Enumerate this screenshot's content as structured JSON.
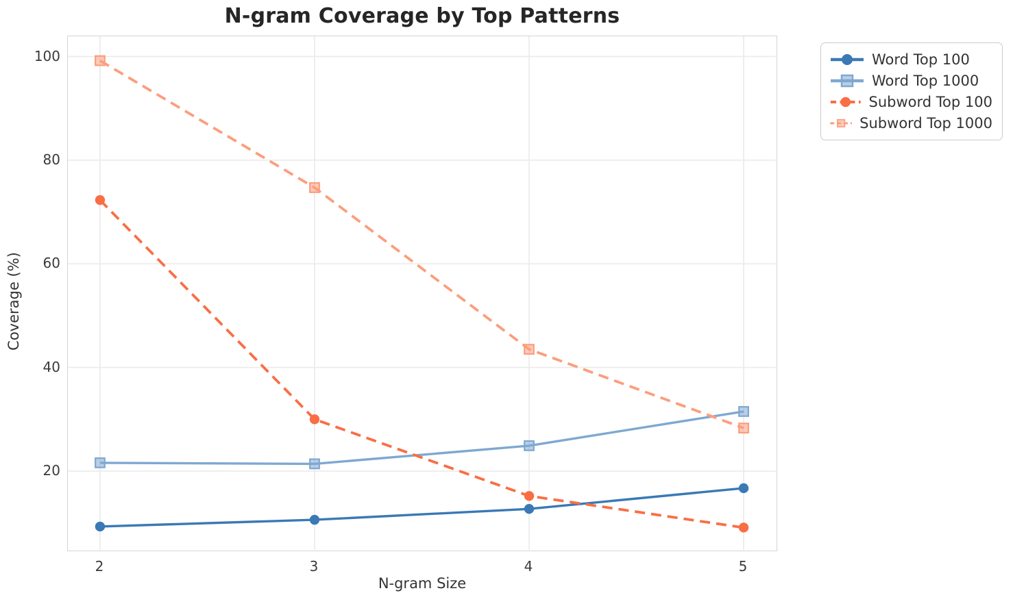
{
  "chart_data": {
    "type": "line",
    "title": "N-gram Coverage by Top Patterns",
    "xlabel": "N-gram Size",
    "ylabel": "Coverage (%)",
    "x": [
      2,
      3,
      4,
      5
    ],
    "xticks": [
      2,
      3,
      4,
      5
    ],
    "yticks": [
      20,
      40,
      60,
      80,
      100
    ],
    "xlim": [
      1.85,
      5.15
    ],
    "ylim": [
      4.8,
      103.9
    ],
    "grid": true,
    "legend_position": "upper-right-outside",
    "series": [
      {
        "name": "Word Top 100",
        "values": [
          9.3,
          10.6,
          12.7,
          16.7
        ],
        "color": "#3a79b5",
        "line_style": "solid",
        "marker": "circle"
      },
      {
        "name": "Word Top 1000",
        "values": [
          21.6,
          21.4,
          24.9,
          31.5
        ],
        "color": "#7fa8d1",
        "line_style": "solid",
        "marker": "square"
      },
      {
        "name": "Subword Top 100",
        "values": [
          72.3,
          30.0,
          15.2,
          9.1
        ],
        "color": "#f96e45",
        "line_style": "dashed",
        "marker": "circle"
      },
      {
        "name": "Subword Top 1000",
        "values": [
          99.2,
          74.7,
          43.5,
          28.3
        ],
        "color": "#fb9e7d",
        "line_style": "dashed",
        "marker": "square"
      }
    ],
    "style": {
      "grid_color": "#ececec",
      "spine_color": "#d4d4d4",
      "tick_color": "#3a3a3a",
      "title_color": "#262626",
      "background": "#ffffff"
    }
  }
}
